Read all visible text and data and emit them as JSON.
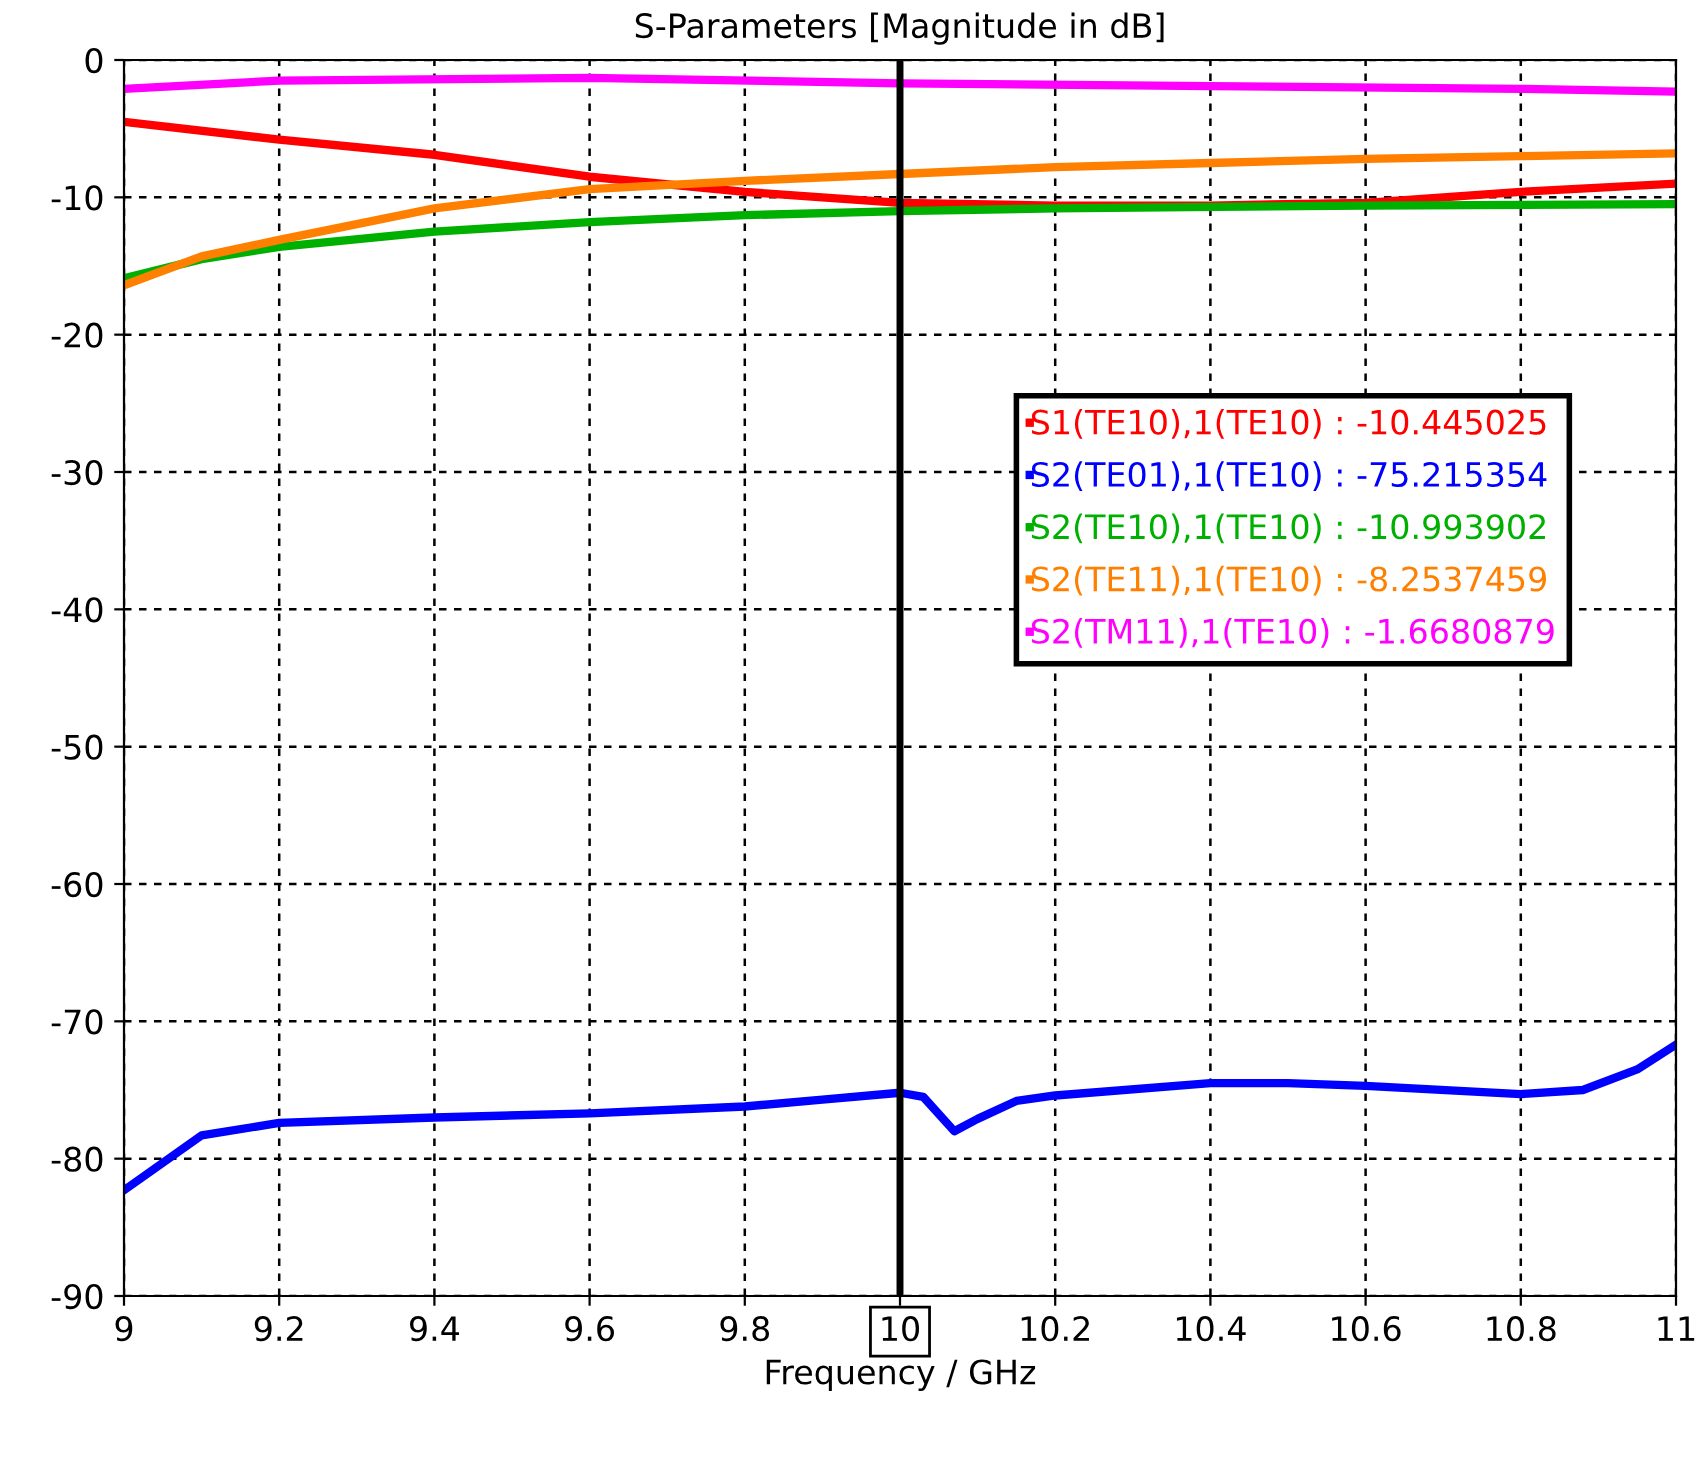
{
  "chart_data": {
    "type": "line",
    "title": "S-Parameters [Magnitude in dB]",
    "xlabel": "Frequency / GHz",
    "xlim": [
      9,
      11
    ],
    "xticks": [
      9,
      9.2,
      9.4,
      9.6,
      9.8,
      10,
      10.2,
      10.4,
      10.6,
      10.8,
      11
    ],
    "ylim": [
      -90,
      0
    ],
    "yticks": [
      -90,
      -80,
      -70,
      -60,
      -50,
      -40,
      -30,
      -20,
      -10,
      0
    ],
    "grid": true,
    "legend": "right",
    "marker": "none",
    "line_style": "solid",
    "ref_lines": [
      {
        "axis": "x",
        "value": 10,
        "color": "#000000"
      }
    ],
    "series": [
      {
        "name": "S1(TE10),1(TE10) : -10.445025",
        "color": "#ff0000",
        "x": [
          9,
          9.2,
          9.4,
          9.6,
          9.8,
          10,
          10.2,
          10.4,
          10.6,
          10.8,
          11
        ],
        "values": [
          -4.5,
          -5.8,
          -6.9,
          -8.5,
          -9.6,
          -10.4,
          -10.6,
          -10.6,
          -10.4,
          -9.6,
          -9.0
        ]
      },
      {
        "name": "S2(TE01),1(TE10) : -75.215354",
        "color": "#0000ff",
        "x": [
          9,
          9.1,
          9.2,
          9.4,
          9.6,
          9.8,
          9.9,
          10,
          10.03,
          10.07,
          10.1,
          10.15,
          10.2,
          10.4,
          10.5,
          10.6,
          10.8,
          10.88,
          10.95,
          11
        ],
        "values": [
          -82.3,
          -78.3,
          -77.4,
          -77.0,
          -76.7,
          -76.2,
          -75.7,
          -75.2,
          -75.5,
          -78.0,
          -77.1,
          -75.8,
          -75.4,
          -74.5,
          -74.5,
          -74.7,
          -75.3,
          -75.0,
          -73.5,
          -71.7
        ]
      },
      {
        "name": "S2(TE10),1(TE10) : -10.993902",
        "color": "#00b000",
        "x": [
          9,
          9.1,
          9.2,
          9.4,
          9.6,
          9.8,
          10,
          10.2,
          10.6,
          11
        ],
        "values": [
          -15.9,
          -14.5,
          -13.6,
          -12.5,
          -11.8,
          -11.3,
          -11.0,
          -10.8,
          -10.6,
          -10.5
        ]
      },
      {
        "name": "S2(TE11),1(TE10) : -8.2537459",
        "color": "#ff8000",
        "x": [
          9,
          9.1,
          9.2,
          9.4,
          9.6,
          9.8,
          10,
          10.2,
          10.4,
          10.6,
          10.8,
          11
        ],
        "values": [
          -16.4,
          -14.3,
          -13.1,
          -10.8,
          -9.4,
          -8.8,
          -8.3,
          -7.8,
          -7.5,
          -7.2,
          -7.0,
          -6.8
        ]
      },
      {
        "name": "S2(TM11),1(TE10) : -1.6680879",
        "color": "#ff00ff",
        "x": [
          9,
          9.2,
          9.6,
          10,
          10.4,
          10.8,
          11
        ],
        "values": [
          -2.1,
          -1.5,
          -1.3,
          -1.7,
          -1.9,
          -2.1,
          -2.3
        ]
      }
    ]
  }
}
